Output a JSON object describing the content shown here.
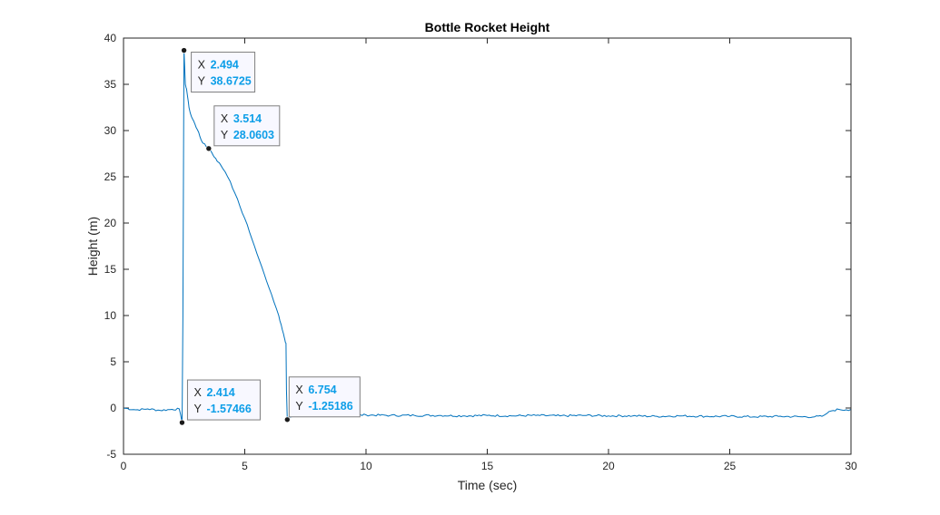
{
  "chart_data": {
    "type": "line",
    "title": "Bottle Rocket Height",
    "xlabel": "Time (sec)",
    "ylabel": "Height (m)",
    "xlim": [
      0,
      30
    ],
    "ylim": [
      -5,
      40
    ],
    "xticks": [
      0,
      5,
      10,
      15,
      20,
      25,
      30
    ],
    "yticks": [
      -5,
      0,
      5,
      10,
      15,
      20,
      25,
      30,
      35,
      40
    ],
    "grid": false,
    "legend": "none",
    "line_color": "#0072bd",
    "series": [
      {
        "x": [
          0,
          0.5,
          1.0,
          1.5,
          2.0,
          2.3,
          2.414,
          2.45,
          2.48,
          2.494,
          2.55,
          2.6,
          2.65,
          2.7,
          2.8,
          2.9,
          3.0,
          3.1,
          3.2,
          3.3,
          3.4,
          3.514,
          3.6,
          3.7,
          3.8,
          3.9,
          4.0,
          4.2,
          4.4,
          4.6,
          4.8,
          5.0,
          5.2,
          5.4,
          5.6,
          5.8,
          6.0,
          6.2,
          6.4,
          6.5,
          6.6,
          6.65,
          6.7,
          6.72,
          6.754,
          6.8,
          7.0,
          7.5,
          8.0,
          9.0,
          10.0,
          11.0,
          12.0,
          13.0,
          14.0,
          15.0,
          16.0,
          17.0,
          18.0,
          19.0,
          20.0,
          21.0,
          22.0,
          23.0,
          24.0,
          25.0,
          26.0,
          27.0,
          28.0,
          28.5,
          28.8,
          29.0,
          29.2,
          29.5,
          29.8,
          30.0
        ],
        "y": [
          0,
          -0.2,
          -0.1,
          -0.25,
          -0.15,
          -0.1,
          -1.57466,
          10,
          30,
          38.6725,
          35,
          34.5,
          33.5,
          32.5,
          31.5,
          31.0,
          30.3,
          29.8,
          29.0,
          28.6,
          28.3,
          28.0603,
          27.8,
          27.3,
          27.0,
          26.6,
          26.3,
          25.5,
          24.5,
          23.2,
          21.8,
          20.5,
          19.0,
          17.5,
          16.0,
          14.5,
          13.0,
          11.5,
          10.0,
          9.0,
          8.0,
          7.4,
          7.0,
          2.0,
          -1.25186,
          -1.0,
          -0.9,
          -0.8,
          -0.75,
          -0.8,
          -0.75,
          -0.8,
          -0.8,
          -0.8,
          -0.85,
          -0.8,
          -0.85,
          -0.8,
          -0.85,
          -0.8,
          -0.85,
          -0.85,
          -0.9,
          -0.85,
          -0.9,
          -0.9,
          -0.95,
          -0.9,
          -0.95,
          -0.95,
          -0.9,
          -0.6,
          -0.3,
          -0.15,
          -0.2,
          -0.15
        ]
      }
    ],
    "datatips": [
      {
        "x_label": "X",
        "x_value": "2.494",
        "y_label": "Y",
        "y_value": "38.6725",
        "x": 2.494,
        "y": 38.6725
      },
      {
        "x_label": "X",
        "x_value": "3.514",
        "y_label": "Y",
        "y_value": "28.0603",
        "x": 3.514,
        "y": 28.0603
      },
      {
        "x_label": "X",
        "x_value": "2.414",
        "y_label": "Y",
        "y_value": "-1.57466",
        "x": 2.414,
        "y": -1.57466
      },
      {
        "x_label": "X",
        "x_value": "6.754",
        "y_label": "Y",
        "y_value": "-1.25186",
        "x": 6.754,
        "y": -1.25186
      }
    ]
  }
}
